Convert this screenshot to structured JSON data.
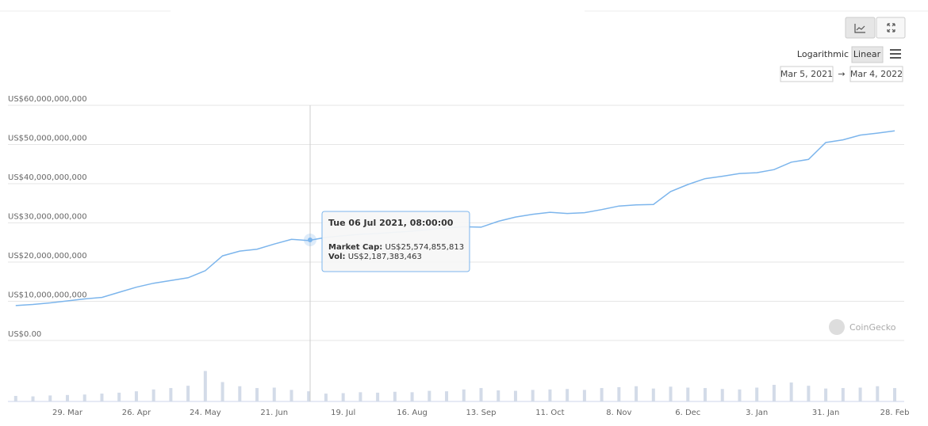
{
  "chart_data": {
    "type": "line",
    "categories": [
      null,
      null,
      null,
      "29. Mar",
      null,
      null,
      null,
      "26. Apr",
      null,
      null,
      null,
      "24. May",
      null,
      null,
      null,
      "21. Jun",
      null,
      null,
      null,
      "19. Jul",
      null,
      null,
      null,
      "16. Aug",
      null,
      null,
      null,
      "13. Sep",
      null,
      null,
      null,
      "11. Oct",
      null,
      null,
      null,
      "8. Nov",
      null,
      null,
      null,
      "6. Dec",
      null,
      null,
      null,
      "3. Jan",
      null,
      null,
      null,
      "31. Jan",
      null,
      null,
      null,
      "28. Feb"
    ],
    "series": [
      {
        "color": "#7cb5ec",
        "values": [
          8900000000,
          9200000000,
          9600000000,
          10100000000,
          10600000000,
          11000000000,
          12300000000,
          13600000000,
          14600000000,
          15300000000,
          16000000000,
          17800000000,
          21600000000,
          22800000000,
          23300000000,
          24600000000,
          25800000000,
          25500000000,
          26300000000,
          26700000000,
          27100000000,
          27300000000,
          27600000000,
          27900000000,
          28300000000,
          28700000000,
          29000000000,
          28900000000,
          30400000000,
          31500000000,
          32200000000,
          32700000000,
          32400000000,
          32600000000,
          33400000000,
          34300000000,
          34600000000,
          34700000000,
          38000000000,
          39800000000,
          41300000000,
          41900000000,
          42600000000,
          42800000000,
          43600000000,
          45500000000,
          46200000000,
          50500000000,
          51200000000,
          52400000000,
          52900000000,
          53500000000
        ]
      },
      {
        "color": "#d3dbe8",
        "axis": "y2",
        "values": [
          1200000000,
          1100000000,
          1300000000,
          1400000000,
          1500000000,
          1700000000,
          1900000000,
          2200000000,
          2600000000,
          2900000000,
          3400000000,
          6600000000,
          4200000000,
          3300000000,
          2900000000,
          3000000000,
          2500000000,
          2200000000,
          1700000000,
          1800000000,
          2000000000,
          1900000000,
          2100000000,
          2000000000,
          2300000000,
          2200000000,
          2600000000,
          2900000000,
          2400000000,
          2300000000,
          2500000000,
          2600000000,
          2700000000,
          2500000000,
          2900000000,
          3100000000,
          3300000000,
          2800000000,
          3200000000,
          3000000000,
          2900000000,
          2700000000,
          2600000000,
          3000000000,
          3600000000,
          4100000000,
          3400000000,
          2800000000,
          2900000000,
          3000000000,
          3300000000,
          2900000000
        ]
      }
    ],
    "ylim": [
      0,
      60000000000
    ],
    "yticks": [
      {
        "value": 0,
        "label": "US$0.00"
      },
      {
        "value": 10000000000,
        "label": "US$10,000,000,000"
      },
      {
        "value": 20000000000,
        "label": "US$20,000,000,000"
      },
      {
        "value": 30000000000,
        "label": "US$30,000,000,000"
      },
      {
        "value": 40000000000,
        "label": "US$40,000,000,000"
      },
      {
        "value": 50000000000,
        "label": "US$50,000,000,000"
      },
      {
        "value": 60000000000,
        "label": "US$60,000,000,000"
      }
    ],
    "y2lim": [
      0,
      12000000000
    ],
    "grid": true,
    "log_scale": false,
    "scale_options": [
      "Logarithmic",
      "Linear"
    ],
    "date_range": [
      "Mar 5, 2021",
      "Mar 4, 2022"
    ],
    "date_range_separator": "→",
    "watermark": "CoinGecko",
    "tooltip": {
      "title": "Tue 06 Jul 2021, 08:00:00",
      "items": [
        {
          "label": "Market Cap:",
          "value": "US$25,574,855,813"
        },
        {
          "label": "Vol:",
          "value": "US$2,187,383,463"
        }
      ]
    }
  }
}
